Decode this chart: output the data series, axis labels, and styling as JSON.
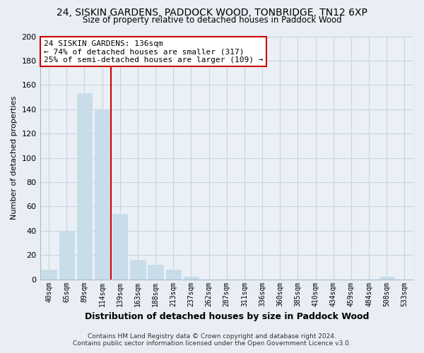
{
  "title1": "24, SISKIN GARDENS, PADDOCK WOOD, TONBRIDGE, TN12 6XP",
  "title2": "Size of property relative to detached houses in Paddock Wood",
  "xlabel": "Distribution of detached houses by size in Paddock Wood",
  "ylabel": "Number of detached properties",
  "bar_labels": [
    "40sqm",
    "65sqm",
    "89sqm",
    "114sqm",
    "139sqm",
    "163sqm",
    "188sqm",
    "213sqm",
    "237sqm",
    "262sqm",
    "287sqm",
    "311sqm",
    "336sqm",
    "360sqm",
    "385sqm",
    "410sqm",
    "434sqm",
    "459sqm",
    "484sqm",
    "508sqm",
    "533sqm"
  ],
  "bar_values": [
    8,
    40,
    153,
    139,
    54,
    16,
    12,
    8,
    2,
    0,
    0,
    0,
    0,
    0,
    0,
    0,
    0,
    0,
    0,
    2,
    0
  ],
  "bar_color": "#c8dcea",
  "highlight_color": "#cc0000",
  "red_line_index": 3.5,
  "ylim": [
    0,
    200
  ],
  "yticks": [
    0,
    20,
    40,
    60,
    80,
    100,
    120,
    140,
    160,
    180,
    200
  ],
  "annotation_text_line1": "24 SISKIN GARDENS: 136sqm",
  "annotation_text_line2": "← 74% of detached houses are smaller (317)",
  "annotation_text_line3": "25% of semi-detached houses are larger (109) →",
  "footer1": "Contains HM Land Registry data © Crown copyright and database right 2024.",
  "footer2": "Contains public sector information licensed under the Open Government Licence v3.0.",
  "bg_color": "#e8eef4",
  "plot_bg_color": "#eaf0f6",
  "grid_color": "#c8d4e0"
}
